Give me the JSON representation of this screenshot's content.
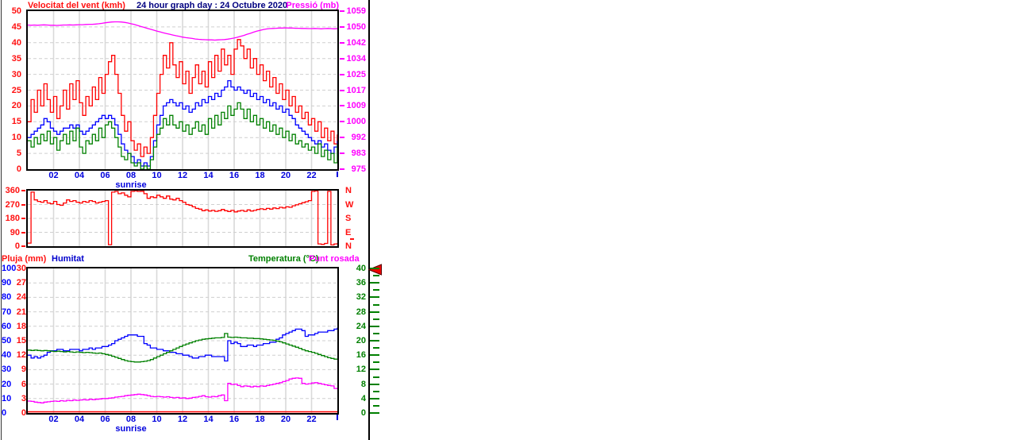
{
  "labels": {
    "sunrise": "sunrise"
  },
  "chart_data": [
    {
      "name": "wind-and-pressure",
      "type": "line",
      "title": "24 hour graph day : 24 Octubre 2020",
      "x": {
        "start": 0,
        "end": 24,
        "step_hours": 0.25,
        "tick_labels": [
          "02",
          "04",
          "06",
          "08",
          "10",
          "12",
          "14",
          "16",
          "18",
          "20",
          "22"
        ],
        "sunrise_under": "08"
      },
      "left_axis": {
        "title": "Velocitat del vent (kmh)",
        "min": 0,
        "max": 50,
        "ticks": [
          50,
          45,
          40,
          35,
          30,
          25,
          20,
          15,
          10,
          5,
          0
        ],
        "color": "#ff1010"
      },
      "right_axis": {
        "title": "Pressió (mb)",
        "min": 975,
        "max": 1059,
        "ticks": [
          1059,
          1050,
          1042,
          1034,
          1025,
          1017,
          1009,
          1000,
          992,
          983,
          975
        ],
        "color": "#ff00ff"
      },
      "series": [
        {
          "name": "wind-gust-kmh",
          "color": "#ff0000",
          "axis": "left",
          "step": true,
          "values": [
            15,
            22,
            18,
            25,
            20,
            27,
            22,
            18,
            23,
            16,
            20,
            25,
            19,
            27,
            22,
            28,
            21,
            17,
            23,
            20,
            26,
            22,
            29,
            24,
            30,
            34,
            36,
            30,
            24,
            17,
            12,
            15,
            9,
            6,
            8,
            4,
            7,
            5,
            10,
            17,
            24,
            30,
            36,
            32,
            40,
            33,
            29,
            34,
            27,
            31,
            24,
            29,
            33,
            27,
            31,
            26,
            34,
            29,
            36,
            31,
            38,
            33,
            36,
            30,
            38,
            41,
            39,
            35,
            38,
            32,
            35,
            30,
            33,
            28,
            31,
            26,
            29,
            24,
            27,
            22,
            25,
            20,
            23,
            18,
            20,
            16,
            18,
            14,
            16,
            12,
            15,
            10,
            13,
            9,
            12,
            8,
            11
          ]
        },
        {
          "name": "wind-average-kmh",
          "color": "#0000ff",
          "axis": "left",
          "step": true,
          "values": [
            10,
            11,
            12,
            13,
            14,
            16,
            15,
            13,
            12,
            11,
            12,
            13,
            13,
            14,
            13,
            14,
            12,
            11,
            12,
            13,
            14,
            15,
            16,
            17,
            16,
            17,
            16,
            14,
            11,
            8,
            6,
            5,
            4,
            2,
            3,
            1,
            2,
            1,
            4,
            9,
            14,
            17,
            20,
            21,
            22,
            21,
            20,
            21,
            19,
            20,
            18,
            19,
            21,
            20,
            22,
            21,
            23,
            22,
            24,
            23,
            25,
            26,
            28,
            26,
            25,
            26,
            25,
            24,
            25,
            23,
            24,
            22,
            23,
            21,
            22,
            20,
            21,
            19,
            20,
            18,
            19,
            17,
            16,
            14,
            13,
            12,
            11,
            10,
            9,
            8,
            9,
            7,
            8,
            6,
            5,
            7,
            9
          ]
        },
        {
          "name": "wind-speed-kmh",
          "color": "#008000",
          "axis": "left",
          "step": true,
          "values": [
            9,
            7,
            10,
            8,
            11,
            9,
            12,
            8,
            10,
            6,
            9,
            11,
            8,
            12,
            9,
            13,
            7,
            5,
            9,
            8,
            11,
            9,
            13,
            10,
            14,
            15,
            13,
            10,
            7,
            4,
            3,
            5,
            2,
            1,
            2,
            0,
            1,
            0,
            3,
            7,
            11,
            13,
            16,
            14,
            17,
            14,
            13,
            15,
            12,
            14,
            11,
            13,
            15,
            12,
            14,
            11,
            16,
            13,
            17,
            14,
            18,
            16,
            20,
            17,
            19,
            21,
            19,
            16,
            19,
            15,
            17,
            14,
            16,
            13,
            15,
            12,
            14,
            11,
            13,
            10,
            12,
            9,
            11,
            8,
            9,
            7,
            8,
            6,
            7,
            5,
            8,
            4,
            6,
            3,
            5,
            2,
            8
          ]
        },
        {
          "name": "pressio-mb",
          "color": "#ff00ff",
          "axis": "right",
          "step": false,
          "values": [
            1051.6,
            1051.5,
            1051.6,
            1051.5,
            1051.6,
            1051.7,
            1051.6,
            1051.5,
            1051.5,
            1051.4,
            1051.5,
            1051.6,
            1051.6,
            1051.7,
            1051.6,
            1051.7,
            1051.8,
            1051.8,
            1051.9,
            1052.0,
            1052.0,
            1052.1,
            1052.3,
            1052.5,
            1052.8,
            1053.0,
            1053.2,
            1053.3,
            1053.3,
            1053.2,
            1053.0,
            1052.7,
            1052.3,
            1051.9,
            1051.4,
            1050.9,
            1050.4,
            1049.9,
            1049.4,
            1048.9,
            1048.4,
            1048.0,
            1047.5,
            1047.1,
            1046.7,
            1046.3,
            1045.9,
            1045.6,
            1045.2,
            1044.9,
            1044.7,
            1044.5,
            1044.2,
            1044.0,
            1043.9,
            1043.8,
            1043.7,
            1043.7,
            1043.6,
            1043.7,
            1043.8,
            1043.9,
            1044.1,
            1044.4,
            1044.7,
            1045.1,
            1045.6,
            1046.1,
            1046.7,
            1047.2,
            1047.8,
            1048.3,
            1048.8,
            1049.2,
            1049.5,
            1049.7,
            1049.8,
            1049.9,
            1050.0,
            1050.0,
            1050.1,
            1050.0,
            1050.0,
            1049.9,
            1049.9,
            1049.8,
            1049.8,
            1049.7,
            1049.7,
            1049.8,
            1049.7,
            1049.6,
            1049.7,
            1049.8,
            1049.7,
            1049.6,
            1049.7
          ]
        }
      ]
    },
    {
      "name": "wind-direction",
      "type": "line",
      "left_axis": {
        "min": 0,
        "max": 360,
        "ticks": [
          360,
          270,
          180,
          90,
          0
        ],
        "color": "#ff1010"
      },
      "right_axis": {
        "labels": [
          "N",
          "W",
          "S",
          "E",
          "N"
        ],
        "color": "#ff1010"
      },
      "series": [
        {
          "name": "direccio-vent-graus",
          "color": "#ff0000",
          "axis": "left",
          "step": true,
          "values": [
            20,
            350,
            300,
            290,
            285,
            295,
            280,
            275,
            290,
            270,
            265,
            280,
            300,
            290,
            295,
            285,
            280,
            290,
            285,
            295,
            290,
            280,
            285,
            290,
            295,
            10,
            350,
            355,
            340,
            345,
            330,
            320,
            355,
            358,
            355,
            356,
            340,
            310,
            320,
            315,
            330,
            320,
            310,
            325,
            305,
            300,
            310,
            295,
            285,
            270,
            265,
            255,
            245,
            240,
            230,
            235,
            228,
            232,
            226,
            230,
            238,
            230,
            225,
            232,
            222,
            228,
            232,
            226,
            235,
            228,
            232,
            238,
            242,
            238,
            245,
            240,
            248,
            244,
            252,
            248,
            255,
            252,
            262,
            268,
            275,
            282,
            288,
            295,
            355,
            358,
            15,
            12,
            18,
            355,
            8,
            15,
            20
          ]
        }
      ]
    },
    {
      "name": "rain-humidity-temperature-dewpoint",
      "type": "line",
      "series_labels": {
        "rain": "Pluja (mm)",
        "humidity": "Humitat",
        "temperature": "Temperatura (°C)",
        "dewpoint": "Punt rosada"
      },
      "axes": {
        "humidity": {
          "min": 0,
          "max": 100,
          "ticks": [
            100,
            90,
            80,
            70,
            60,
            50,
            40,
            30,
            20,
            10,
            0
          ],
          "color": "#0000ff"
        },
        "rain": {
          "min": 0,
          "max": 30,
          "ticks": [
            30,
            27,
            24,
            21,
            18,
            15,
            12,
            9,
            6,
            3,
            0
          ],
          "color": "#ff1010"
        },
        "temperature": {
          "min": 0,
          "max": 40,
          "ticks": [
            40,
            36,
            32,
            28,
            24,
            20,
            16,
            12,
            8,
            4,
            0
          ],
          "color": "#008000"
        }
      },
      "x": {
        "start": 0,
        "end": 24,
        "step_hours": 0.25,
        "tick_labels": [
          "02",
          "04",
          "06",
          "08",
          "10",
          "12",
          "14",
          "16",
          "18",
          "20",
          "22"
        ],
        "sunrise_under": "08"
      },
      "series": [
        {
          "name": "humitat-pct",
          "color": "#0000ff",
          "scale": "humidity",
          "step": true,
          "values": [
            40,
            38,
            39,
            38,
            39,
            40,
            42,
            43,
            43,
            44,
            44,
            43,
            43,
            44,
            44,
            44,
            43,
            44,
            44,
            45,
            44,
            45,
            45,
            46,
            46,
            47,
            48,
            50,
            51,
            52,
            53,
            54,
            54,
            54,
            53,
            53,
            48,
            47,
            45,
            45,
            44,
            44,
            43,
            43,
            42,
            42,
            41,
            41,
            40,
            40,
            39,
            38,
            38,
            39,
            39,
            40,
            40,
            39,
            39,
            39,
            39,
            36,
            50,
            48,
            49,
            48,
            46,
            46,
            47,
            47,
            46,
            47,
            47,
            48,
            48,
            49,
            49,
            51,
            52,
            54,
            55,
            56,
            57,
            58,
            58,
            57,
            53,
            54,
            54,
            55,
            56,
            56,
            56,
            57,
            57,
            58,
            59
          ]
        },
        {
          "name": "temperatura-c",
          "color": "#008000",
          "scale": "temperature",
          "step": true,
          "values": [
            17.4,
            17.3,
            17.4,
            17.3,
            17.2,
            17.3,
            17.2,
            17.1,
            17.0,
            17.1,
            17.0,
            16.9,
            17.0,
            16.9,
            16.8,
            16.9,
            16.8,
            16.7,
            16.8,
            16.7,
            16.6,
            16.5,
            16.6,
            16.4,
            16.2,
            16.0,
            15.7,
            15.4,
            15.1,
            14.8,
            14.5,
            14.3,
            14.2,
            14.1,
            14.1,
            14.2,
            14.3,
            14.5,
            14.8,
            15.2,
            15.6,
            16.0,
            16.4,
            16.8,
            17.2,
            17.6,
            18.0,
            18.4,
            18.8,
            19.1,
            19.4,
            19.7,
            20.0,
            20.2,
            20.4,
            20.5,
            20.6,
            20.7,
            20.8,
            20.8,
            20.9,
            22.0,
            21.0,
            20.9,
            21.0,
            20.9,
            20.8,
            20.8,
            20.7,
            20.7,
            20.6,
            20.6,
            20.5,
            20.4,
            20.3,
            20.2,
            20.1,
            19.9,
            19.7,
            19.4,
            19.1,
            18.8,
            18.5,
            18.2,
            17.9,
            17.5,
            17.2,
            17.0,
            16.8,
            16.5,
            16.2,
            15.9,
            15.6,
            15.3,
            15.1,
            14.9,
            14.8
          ]
        },
        {
          "name": "punt-rosada-c",
          "color": "#ff00ff",
          "scale": "temperature",
          "step": true,
          "values": [
            3.3,
            3.2,
            3.0,
            2.9,
            2.8,
            3.0,
            3.1,
            3.2,
            3.3,
            3.2,
            3.4,
            3.3,
            3.5,
            3.4,
            3.6,
            3.5,
            3.6,
            3.7,
            3.6,
            3.8,
            3.7,
            3.8,
            3.9,
            4.0,
            4.0,
            4.1,
            4.2,
            4.4,
            4.5,
            4.6,
            4.8,
            4.9,
            5.0,
            5.1,
            5.2,
            5.1,
            5.0,
            4.8,
            4.6,
            4.5,
            4.6,
            4.5,
            4.4,
            4.5,
            4.3,
            4.2,
            4.3,
            4.1,
            4.2,
            4.0,
            4.1,
            4.3,
            4.4,
            4.6,
            4.8,
            4.5,
            4.4,
            4.6,
            4.5,
            4.8,
            5.0,
            3.4,
            8.2,
            7.9,
            8.0,
            7.6,
            7.3,
            7.5,
            7.4,
            7.2,
            7.4,
            7.3,
            7.5,
            7.4,
            7.6,
            7.8,
            8.0,
            8.2,
            8.4,
            8.7,
            9.0,
            9.4,
            9.6,
            9.7,
            9.6,
            8.2,
            8.0,
            8.1,
            8.3,
            8.4,
            8.2,
            8.0,
            7.8,
            7.6,
            7.5,
            6.8,
            6.6
          ]
        },
        {
          "name": "pluja-mm",
          "color": "#ff0000",
          "scale": "rain",
          "step": true,
          "constant": 0
        }
      ]
    }
  ]
}
